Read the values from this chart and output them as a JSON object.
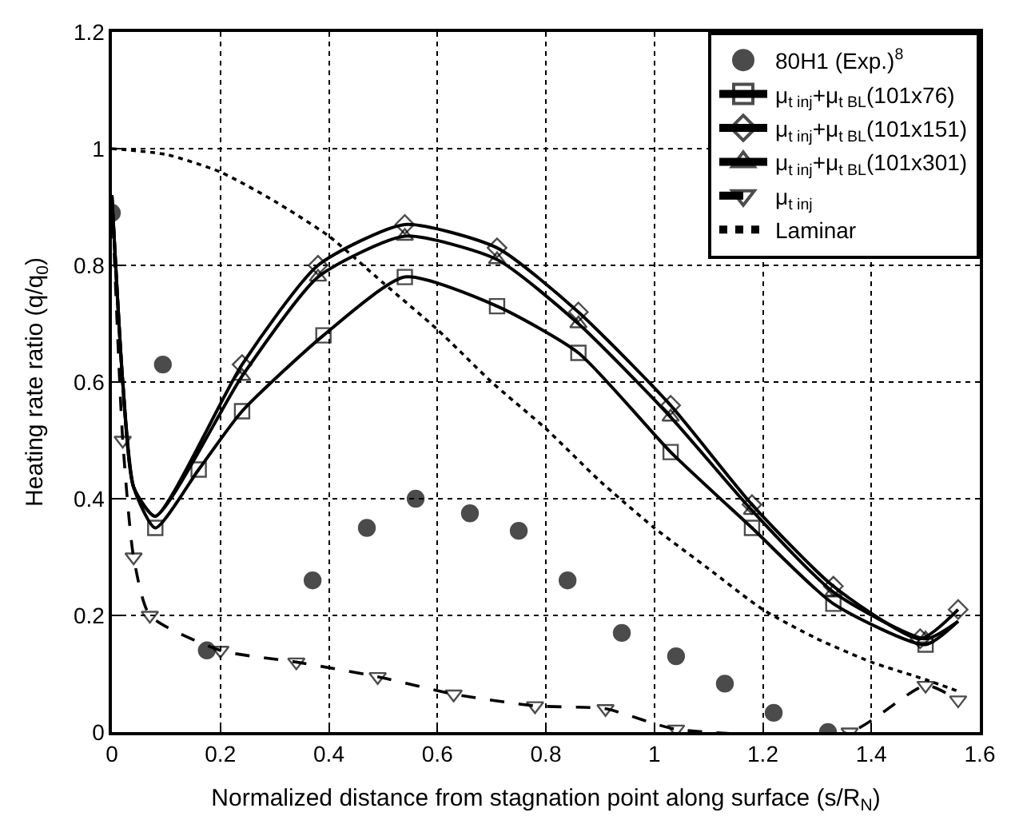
{
  "chart_data": {
    "type": "line",
    "xlabel": "Normalized distance from stagnation point along surface (s/R$_{N}$)",
    "ylabel": "Heating rate ratio (q/q$_{0}$)",
    "xlim": [
      0,
      1.6
    ],
    "ylim": [
      0,
      1.2
    ],
    "xticks": [
      0,
      0.2,
      0.4,
      0.6,
      0.8,
      1,
      1.2,
      1.4,
      1.6
    ],
    "yticks": [
      0,
      0.2,
      0.4,
      0.6,
      0.8,
      1,
      1.2
    ],
    "grid": true,
    "legend": "top right",
    "series": [
      {
        "name": "80H1 (Exp.)$^{8}$",
        "type": "scatter",
        "marker": "circle",
        "color": "#000000",
        "x": [
          0,
          0.094,
          0.175,
          0.37,
          0.47,
          0.56,
          0.66,
          0.75,
          0.84,
          0.94,
          1.04,
          1.13,
          1.22,
          1.32
        ],
        "values": [
          0.89,
          0.63,
          0.14,
          0.26,
          0.35,
          0.4,
          0.375,
          0.345,
          0.26,
          0.17,
          0.13,
          0.083,
          0.033,
          0.0
        ]
      },
      {
        "name": "μ$_{t inj}$+μ$_{t BL}$(101x76)",
        "marker": "square",
        "line_style": "solid",
        "color": "#000000",
        "x": [
          0,
          0.02,
          0.04,
          0.08,
          0.16,
          0.24,
          0.39,
          0.54,
          0.71,
          0.86,
          1.03,
          1.18,
          1.33,
          1.5,
          1.56
        ],
        "values": [
          0.92,
          0.6,
          0.42,
          0.35,
          0.45,
          0.55,
          0.68,
          0.78,
          0.73,
          0.65,
          0.48,
          0.35,
          0.22,
          0.15,
          0.19
        ]
      },
      {
        "name": "μ$_{t inj}$+μ$_{t BL}$(101x151)",
        "marker": "diamond",
        "line_style": "solid",
        "color": "#000000",
        "x": [
          0,
          0.02,
          0.04,
          0.08,
          0.24,
          0.38,
          0.54,
          0.71,
          0.86,
          1.03,
          1.18,
          1.33,
          1.49,
          1.56
        ],
        "values": [
          0.92,
          0.6,
          0.42,
          0.37,
          0.63,
          0.8,
          0.87,
          0.83,
          0.72,
          0.56,
          0.39,
          0.25,
          0.16,
          0.21
        ]
      },
      {
        "name": "μ$_{t inj}$+μ$_{t BL}$(101x301)",
        "marker": "triangle",
        "line_style": "solid",
        "color": "#000000",
        "x": [
          0,
          0.02,
          0.04,
          0.08,
          0.24,
          0.38,
          0.54,
          0.71,
          0.86,
          1.03,
          1.18,
          1.33,
          1.5,
          1.56
        ],
        "values": [
          0.92,
          0.6,
          0.42,
          0.37,
          0.61,
          0.78,
          0.85,
          0.81,
          0.7,
          0.54,
          0.38,
          0.24,
          0.16,
          0.19
        ]
      },
      {
        "name": "μ$_{t inj}$",
        "marker": "triangle-down",
        "line_style": "dashed",
        "color": "#000000",
        "x": [
          0,
          0.02,
          0.04,
          0.07,
          0.2,
          0.34,
          0.49,
          0.63,
          0.78,
          0.91,
          1.04,
          1.36,
          1.5,
          1.56
        ],
        "values": [
          0.92,
          0.5,
          0.3,
          0.2,
          0.14,
          0.12,
          0.095,
          0.065,
          0.045,
          0.04,
          0.005,
          0.0,
          0.08,
          0.055
        ]
      },
      {
        "name": "Laminar",
        "marker": "none",
        "line_style": "dotted",
        "color": "#000000",
        "x": [
          0,
          0.1,
          0.2,
          0.3,
          0.4,
          0.5,
          0.6,
          0.7,
          0.8,
          0.9,
          1.0,
          1.1,
          1.2,
          1.3,
          1.4,
          1.5,
          1.56
        ],
        "values": [
          1.0,
          0.99,
          0.96,
          0.91,
          0.85,
          0.77,
          0.69,
          0.6,
          0.52,
          0.43,
          0.35,
          0.28,
          0.21,
          0.16,
          0.12,
          0.09,
          0.07
        ]
      }
    ]
  }
}
